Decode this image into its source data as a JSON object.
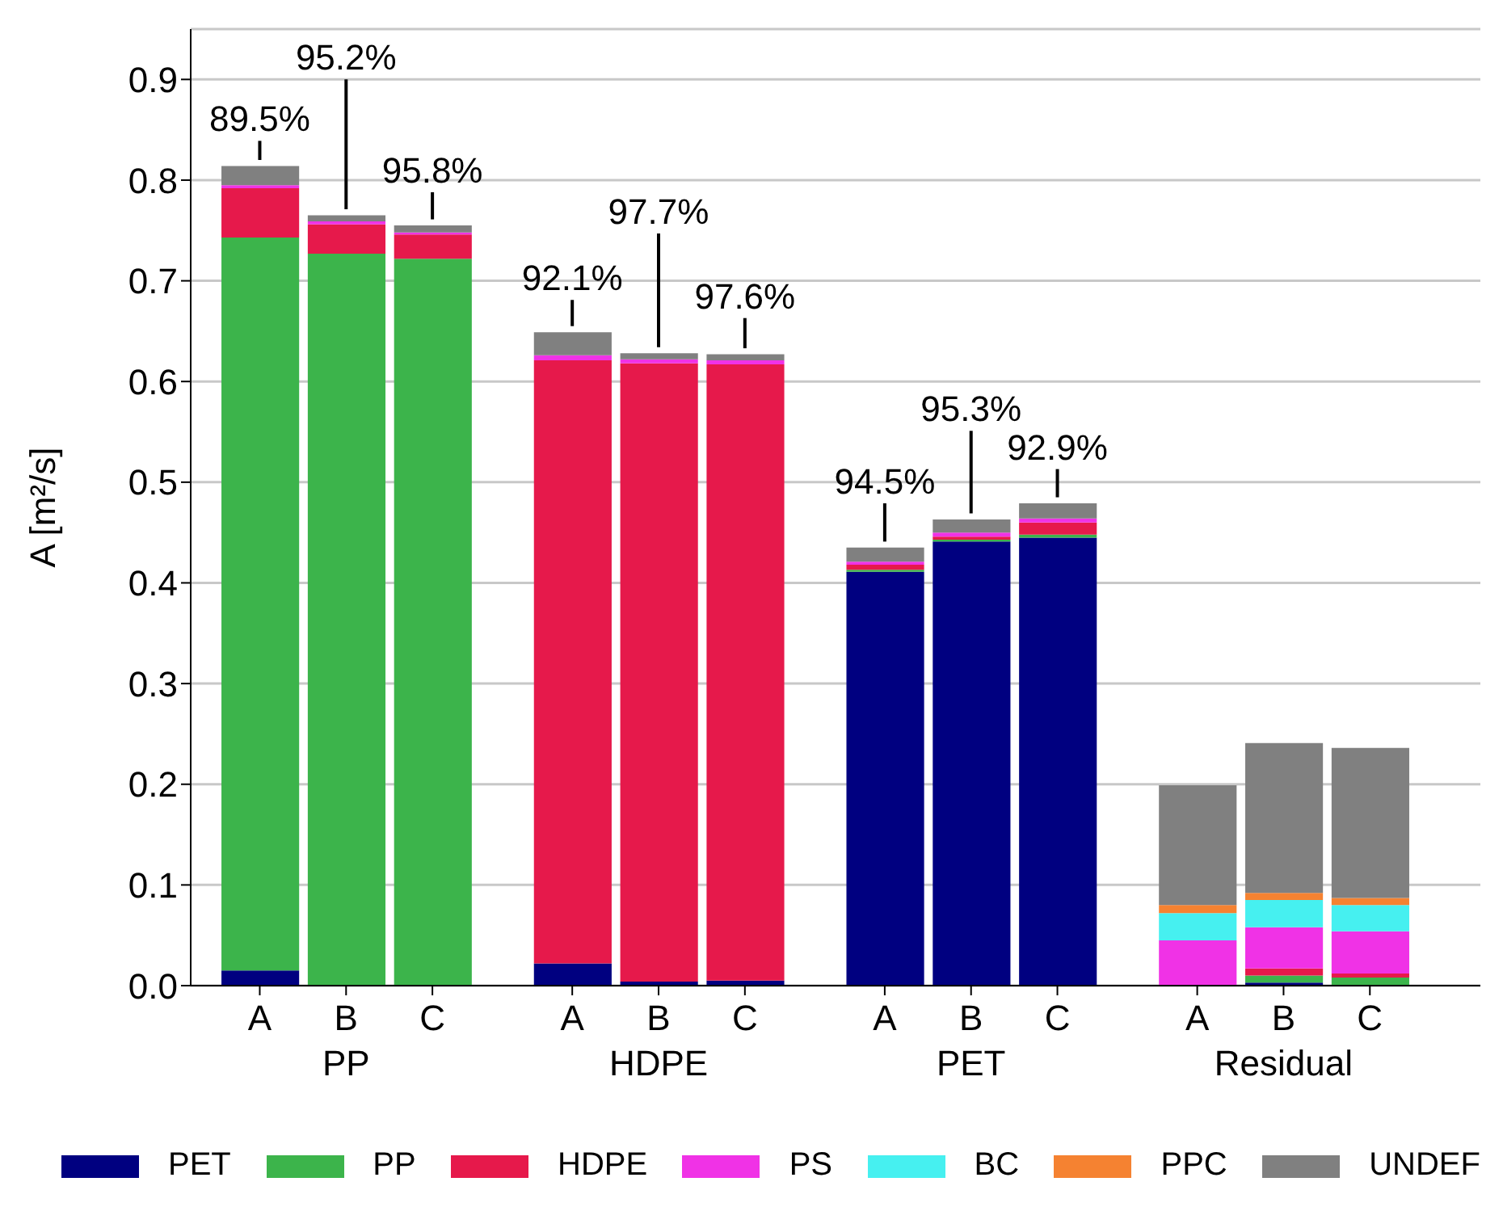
{
  "chart_data": {
    "type": "bar",
    "stacked": true,
    "ylabel": "A [m²/s]",
    "categories": [
      "A",
      "B",
      "C",
      "A",
      "B",
      "C",
      "A",
      "B",
      "C",
      "A",
      "B",
      "C"
    ],
    "series": [
      {
        "name": "PET",
        "color": "#000080",
        "values": [
          0.015,
          0,
          0,
          0.022,
          0.004,
          0.005,
          0.411,
          0.441,
          0.445,
          0,
          0.003,
          0
        ]
      },
      {
        "name": "PP",
        "color": "#3cb44b",
        "values": [
          0.728,
          0.727,
          0.722,
          0,
          0,
          0,
          0.002,
          0.002,
          0.003,
          0,
          0.007,
          0.008
        ]
      },
      {
        "name": "HDPE",
        "color": "#e6194b",
        "values": [
          0.049,
          0.029,
          0.024,
          0.599,
          0.614,
          0.612,
          0.005,
          0.003,
          0.012,
          0,
          0.007,
          0.004
        ]
      },
      {
        "name": "PS",
        "color": "#f032e6",
        "values": [
          0.003,
          0.003,
          0.002,
          0.005,
          0.004,
          0.004,
          0.003,
          0.004,
          0.004,
          0.045,
          0.041,
          0.042
        ]
      },
      {
        "name": "BC",
        "color": "#46f0f0",
        "values": [
          0,
          0,
          0,
          0,
          0,
          0,
          0,
          0,
          0,
          0.027,
          0.027,
          0.026
        ]
      },
      {
        "name": "PPC",
        "color": "#f58231",
        "values": [
          0,
          0,
          0,
          0,
          0,
          0,
          0,
          0,
          0,
          0.008,
          0.007,
          0.007
        ]
      },
      {
        "name": "UNDEF",
        "color": "#808080",
        "values": [
          0.019,
          0.006,
          0.007,
          0.023,
          0.006,
          0.006,
          0.014,
          0.013,
          0.015,
          0.119,
          0.149,
          0.149
        ]
      }
    ],
    "annotations": [
      {
        "text": "89.5%",
        "y": 0.814
      },
      {
        "text": "95.2%",
        "y": 0.765
      },
      {
        "text": "95.8%",
        "y": 0.755
      },
      {
        "text": "92.1%",
        "y": 0.649
      },
      {
        "text": "97.7%",
        "y": 0.628
      },
      {
        "text": "97.6%",
        "y": 0.627
      },
      {
        "text": "94.5%",
        "y": 0.435
      },
      {
        "text": "95.3%",
        "y": 0.463
      },
      {
        "text": "92.9%",
        "y": 0.479
      },
      "PP",
      "HDPE",
      "PET",
      "Residual"
    ],
    "ylim": [
      0,
      0.95
    ],
    "yticks": [
      {
        "value": 0,
        "label": "0.0"
      },
      0.1,
      0.2,
      0.3,
      0.4,
      0.5,
      0.6,
      0.7,
      0.8,
      0.9
    ],
    "grid": "y",
    "legend": "bottom"
  }
}
